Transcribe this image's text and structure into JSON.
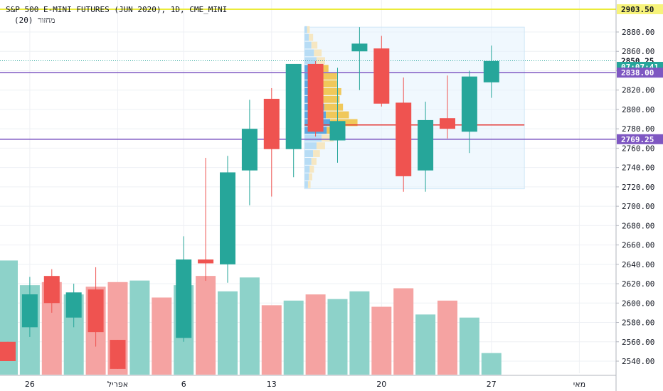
{
  "header": {
    "symbol_line": "S&P 500 E-MINI FUTURES (JUN 2020), 1D, CME_MINI",
    "indicator_line": "מחזור (20)"
  },
  "colors": {
    "up": "#26a69a",
    "down": "#ef5350",
    "volume_up": "#8dd2c9",
    "volume_down": "#f5a3a2",
    "yellow_line": "#ebeb3a",
    "purple_line": "#7e57c2",
    "poc_line": "#e53935",
    "profile_box": "#e3f2fd",
    "profile_value_area": "#f0c85a",
    "profile_outer": "#f6e7c2",
    "profile_blue": "#5ba7e0",
    "profile_blue_light": "#b7dcf5"
  },
  "price_labels": {
    "yellow": {
      "value": 2903.5,
      "text": "2903.50"
    },
    "dotted": {
      "value": 2850.25,
      "text": "2850.25"
    },
    "countdown": {
      "value": 2844,
      "text": "07:07:41"
    },
    "current": {
      "value": 2838,
      "text": "2838.00"
    },
    "purple_low": {
      "value": 2769.25,
      "text": "2769.25"
    }
  },
  "chart_data": {
    "type": "candlestick",
    "title": "S&P 500 E-MINI FUTURES (JUN 2020), 1D, CME_MINI",
    "y_axis": {
      "ticks": [
        2540,
        2560,
        2580,
        2600,
        2620,
        2640,
        2660,
        2680,
        2700,
        2720,
        2740,
        2760,
        2780,
        2800,
        2820,
        2840,
        2860,
        2880
      ],
      "tick_labels": [
        "2540.00",
        "2560.00",
        "2580.00",
        "2600.00",
        "2620.00",
        "2640.00",
        "2660.00",
        "2680.00",
        "2700.00",
        "2720.00",
        "2740.00",
        "2760.00",
        "2780.00",
        "2800.00",
        "2820.00",
        "2840.00",
        "2860.00",
        "2880.00"
      ],
      "range": [
        2524,
        2912
      ]
    },
    "x_axis": {
      "labels": [
        {
          "text": "26",
          "bar": 1
        },
        {
          "text": "אפריל",
          "bar": 5
        },
        {
          "text": "6",
          "bar": 8
        },
        {
          "text": "13",
          "bar": 12
        },
        {
          "text": "20",
          "bar": 17
        },
        {
          "text": "27",
          "bar": 22
        },
        {
          "text": "מאי",
          "bar": 26
        }
      ]
    },
    "candles": [
      {
        "bar": 0,
        "o": 2560,
        "h": 2560,
        "l": 2540,
        "c": 2540
      },
      {
        "bar": 1,
        "o": 2575,
        "h": 2627,
        "l": 2565,
        "c": 2609
      },
      {
        "bar": 2,
        "o": 2628,
        "h": 2635,
        "l": 2590,
        "c": 2600
      },
      {
        "bar": 3,
        "o": 2585,
        "h": 2620,
        "l": 2575,
        "c": 2611
      },
      {
        "bar": 4,
        "o": 2614,
        "h": 2637,
        "l": 2555,
        "c": 2570
      },
      {
        "bar": 5,
        "o": 2562,
        "h": 2562,
        "l": 2532,
        "c": 2532
      },
      {
        "bar": 8,
        "o": 2564,
        "h": 2669,
        "l": 2560,
        "c": 2645
      },
      {
        "bar": 9,
        "o": 2645,
        "h": 2750,
        "l": 2623,
        "c": 2641
      },
      {
        "bar": 10,
        "o": 2640,
        "h": 2752,
        "l": 2621,
        "c": 2735
      },
      {
        "bar": 11,
        "o": 2737,
        "h": 2810,
        "l": 2701,
        "c": 2780
      },
      {
        "bar": 12,
        "o": 2811,
        "h": 2822,
        "l": 2710,
        "c": 2759
      },
      {
        "bar": 13,
        "o": 2759,
        "h": 2847,
        "l": 2730,
        "c": 2847
      },
      {
        "bar": 14,
        "o": 2847,
        "h": 2850,
        "l": 2772,
        "c": 2777
      },
      {
        "bar": 15,
        "o": 2768,
        "h": 2843,
        "l": 2745,
        "c": 2788
      },
      {
        "bar": 16,
        "o": 2860,
        "h": 2885,
        "l": 2820,
        "c": 2868
      },
      {
        "bar": 17,
        "o": 2863,
        "h": 2876,
        "l": 2803,
        "c": 2806
      },
      {
        "bar": 18,
        "o": 2807,
        "h": 2833,
        "l": 2715,
        "c": 2731
      },
      {
        "bar": 19,
        "o": 2737,
        "h": 2808,
        "l": 2715,
        "c": 2789
      },
      {
        "bar": 20,
        "o": 2791,
        "h": 2835,
        "l": 2770,
        "c": 2780
      },
      {
        "bar": 21,
        "o": 2777,
        "h": 2840,
        "l": 2755,
        "c": 2834
      },
      {
        "bar": 22,
        "o": 2828,
        "h": 2866,
        "l": 2812,
        "c": 2850
      }
    ],
    "volume": [
      {
        "bar": 0,
        "v": 0.74,
        "dir": "up"
      },
      {
        "bar": 1,
        "v": 0.58,
        "dir": "up"
      },
      {
        "bar": 2,
        "v": 0.6,
        "dir": "down"
      },
      {
        "bar": 3,
        "v": 0.52,
        "dir": "up"
      },
      {
        "bar": 4,
        "v": 0.57,
        "dir": "down"
      },
      {
        "bar": 5,
        "v": 0.6,
        "dir": "down"
      },
      {
        "bar": 6,
        "v": 0.61,
        "dir": "up"
      },
      {
        "bar": 7,
        "v": 0.5,
        "dir": "down"
      },
      {
        "bar": 8,
        "v": 0.58,
        "dir": "up"
      },
      {
        "bar": 9,
        "v": 0.64,
        "dir": "down"
      },
      {
        "bar": 10,
        "v": 0.54,
        "dir": "up"
      },
      {
        "bar": 11,
        "v": 0.63,
        "dir": "up"
      },
      {
        "bar": 12,
        "v": 0.45,
        "dir": "down"
      },
      {
        "bar": 13,
        "v": 0.48,
        "dir": "up"
      },
      {
        "bar": 14,
        "v": 0.52,
        "dir": "down"
      },
      {
        "bar": 15,
        "v": 0.49,
        "dir": "up"
      },
      {
        "bar": 16,
        "v": 0.54,
        "dir": "up"
      },
      {
        "bar": 17,
        "v": 0.44,
        "dir": "down"
      },
      {
        "bar": 18,
        "v": 0.56,
        "dir": "down"
      },
      {
        "bar": 19,
        "v": 0.39,
        "dir": "up"
      },
      {
        "bar": 20,
        "v": 0.48,
        "dir": "down"
      },
      {
        "bar": 21,
        "v": 0.37,
        "dir": "up"
      },
      {
        "bar": 22,
        "v": 0.14,
        "dir": "up"
      }
    ],
    "volume_profile": {
      "price_top": 2885,
      "price_bottom": 2718,
      "start_bar": 13.5,
      "end_bar": 23.5,
      "poc_price": 2784,
      "rows": [
        {
          "p": 2882,
          "up": 0.03,
          "down": 0.03,
          "va": false
        },
        {
          "p": 2874,
          "up": 0.05,
          "down": 0.05,
          "va": false
        },
        {
          "p": 2866,
          "up": 0.08,
          "down": 0.07,
          "va": false
        },
        {
          "p": 2858,
          "up": 0.11,
          "down": 0.09,
          "va": false
        },
        {
          "p": 2850,
          "up": 0.14,
          "down": 0.1,
          "va": false
        },
        {
          "p": 2842,
          "up": 0.15,
          "down": 0.13,
          "va": true
        },
        {
          "p": 2834,
          "up": 0.18,
          "down": 0.2,
          "va": true
        },
        {
          "p": 2826,
          "up": 0.2,
          "down": 0.18,
          "va": true
        },
        {
          "p": 2818,
          "up": 0.21,
          "down": 0.22,
          "va": true
        },
        {
          "p": 2810,
          "up": 0.22,
          "down": 0.19,
          "va": true
        },
        {
          "p": 2802,
          "up": 0.23,
          "down": 0.22,
          "va": true
        },
        {
          "p": 2794,
          "up": 0.25,
          "down": 0.27,
          "va": true
        },
        {
          "p": 2786,
          "up": 0.3,
          "down": 0.32,
          "va": true
        },
        {
          "p": 2778,
          "up": 0.26,
          "down": 0.18,
          "va": true
        },
        {
          "p": 2770,
          "up": 0.2,
          "down": 0.14,
          "va": false
        },
        {
          "p": 2762,
          "up": 0.14,
          "down": 0.1,
          "va": false
        },
        {
          "p": 2754,
          "up": 0.1,
          "down": 0.08,
          "va": false
        },
        {
          "p": 2746,
          "up": 0.08,
          "down": 0.06,
          "va": false
        },
        {
          "p": 2738,
          "up": 0.06,
          "down": 0.05,
          "va": false
        },
        {
          "p": 2730,
          "up": 0.05,
          "down": 0.04,
          "va": false
        },
        {
          "p": 2722,
          "up": 0.04,
          "down": 0.03,
          "va": false
        }
      ]
    },
    "horizontal_lines": [
      {
        "price": 2903.5,
        "color": "yellow"
      },
      {
        "price": 2838,
        "color": "purple"
      },
      {
        "price": 2769.25,
        "color": "purple"
      },
      {
        "price": 2850.25,
        "color": "teal-dotted"
      }
    ],
    "grid": true
  }
}
